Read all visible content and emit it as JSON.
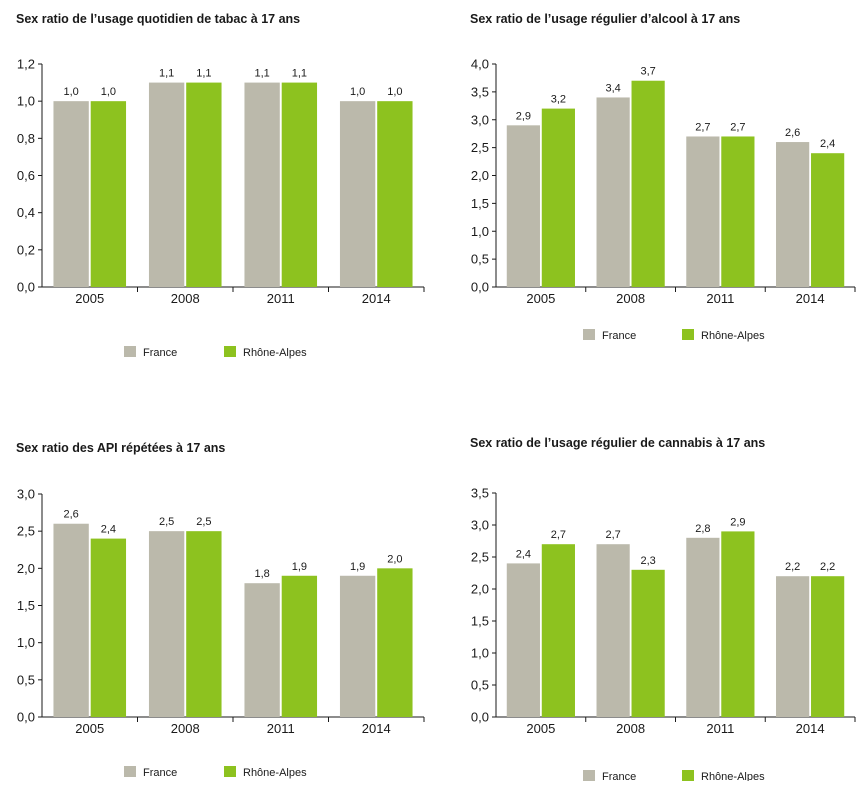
{
  "chart_data": [
    {
      "type": "bar",
      "title": "Sex ratio de l’usage quotidien de tabac à 17 ans",
      "categories": [
        "2005",
        "2008",
        "2011",
        "2014"
      ],
      "series": [
        {
          "name": "France",
          "values": [
            1.0,
            1.1,
            1.1,
            1.0
          ],
          "labels": [
            "1,0",
            "1,1",
            "1,1",
            "1,0"
          ]
        },
        {
          "name": "Rhône-Alpes",
          "values": [
            1.0,
            1.1,
            1.1,
            1.0
          ],
          "labels": [
            "1,0",
            "1,1",
            "1,1",
            "1,0"
          ]
        }
      ],
      "ylim": [
        0,
        1.2
      ],
      "yticks": [
        "0,0",
        "0,2",
        "0,4",
        "0,6",
        "0,8",
        "1,0",
        "1,2"
      ],
      "legend_position": "bottom-center"
    },
    {
      "type": "bar",
      "title": "Sex ratio de l’usage régulier d’alcool à 17 ans",
      "categories": [
        "2005",
        "2008",
        "2011",
        "2014"
      ],
      "series": [
        {
          "name": "France",
          "values": [
            2.9,
            3.4,
            2.7,
            2.6
          ],
          "labels": [
            "2,9",
            "3,4",
            "2,7",
            "2,6"
          ]
        },
        {
          "name": "Rhône-Alpes",
          "values": [
            3.2,
            3.7,
            2.7,
            2.4
          ],
          "labels": [
            "3,2",
            "3,7",
            "2,7",
            "2,4"
          ]
        }
      ],
      "ylim": [
        0,
        4.0
      ],
      "yticks": [
        "0,0",
        "0,5",
        "1,0",
        "1,5",
        "2,0",
        "2,5",
        "3,0",
        "3,5",
        "4,0"
      ],
      "legend_position": "bottom-center"
    },
    {
      "type": "bar",
      "title": "Sex ratio des API répétées à 17 ans",
      "categories": [
        "2005",
        "2008",
        "2011",
        "2014"
      ],
      "series": [
        {
          "name": "France",
          "values": [
            2.6,
            2.5,
            1.8,
            1.9
          ],
          "labels": [
            "2,6",
            "2,5",
            "1,8",
            "1,9"
          ]
        },
        {
          "name": "Rhône-Alpes",
          "values": [
            2.4,
            2.5,
            1.9,
            2.0
          ],
          "labels": [
            "2,4",
            "2,5",
            "1,9",
            "2,0"
          ]
        }
      ],
      "ylim": [
        0,
        3.0
      ],
      "yticks": [
        "0,0",
        "0,5",
        "1,0",
        "1,5",
        "2,0",
        "2,5",
        "3,0"
      ],
      "legend_position": "bottom-center"
    },
    {
      "type": "bar",
      "title": "Sex ratio de l’usage régulier de cannabis à 17 ans",
      "categories": [
        "2005",
        "2008",
        "2011",
        "2014"
      ],
      "series": [
        {
          "name": "France",
          "values": [
            2.4,
            2.7,
            2.8,
            2.2
          ],
          "labels": [
            "2,4",
            "2,7",
            "2,8",
            "2,2"
          ]
        },
        {
          "name": "Rhône-Alpes",
          "values": [
            2.7,
            2.3,
            2.9,
            2.2
          ],
          "labels": [
            "2,7",
            "2,3",
            "2,9",
            "2,2"
          ]
        }
      ],
      "ylim": [
        0,
        3.5
      ],
      "yticks": [
        "0,0",
        "0,5",
        "1,0",
        "1,5",
        "2,0",
        "2,5",
        "3,0",
        "3,5"
      ],
      "legend_position": "bottom-center"
    }
  ],
  "colors": {
    "France": "#bbb9ab",
    "Rhône-Alpes": "#8dc21f",
    "axis": "#1a1a1a",
    "text": "#1a1a1a"
  }
}
